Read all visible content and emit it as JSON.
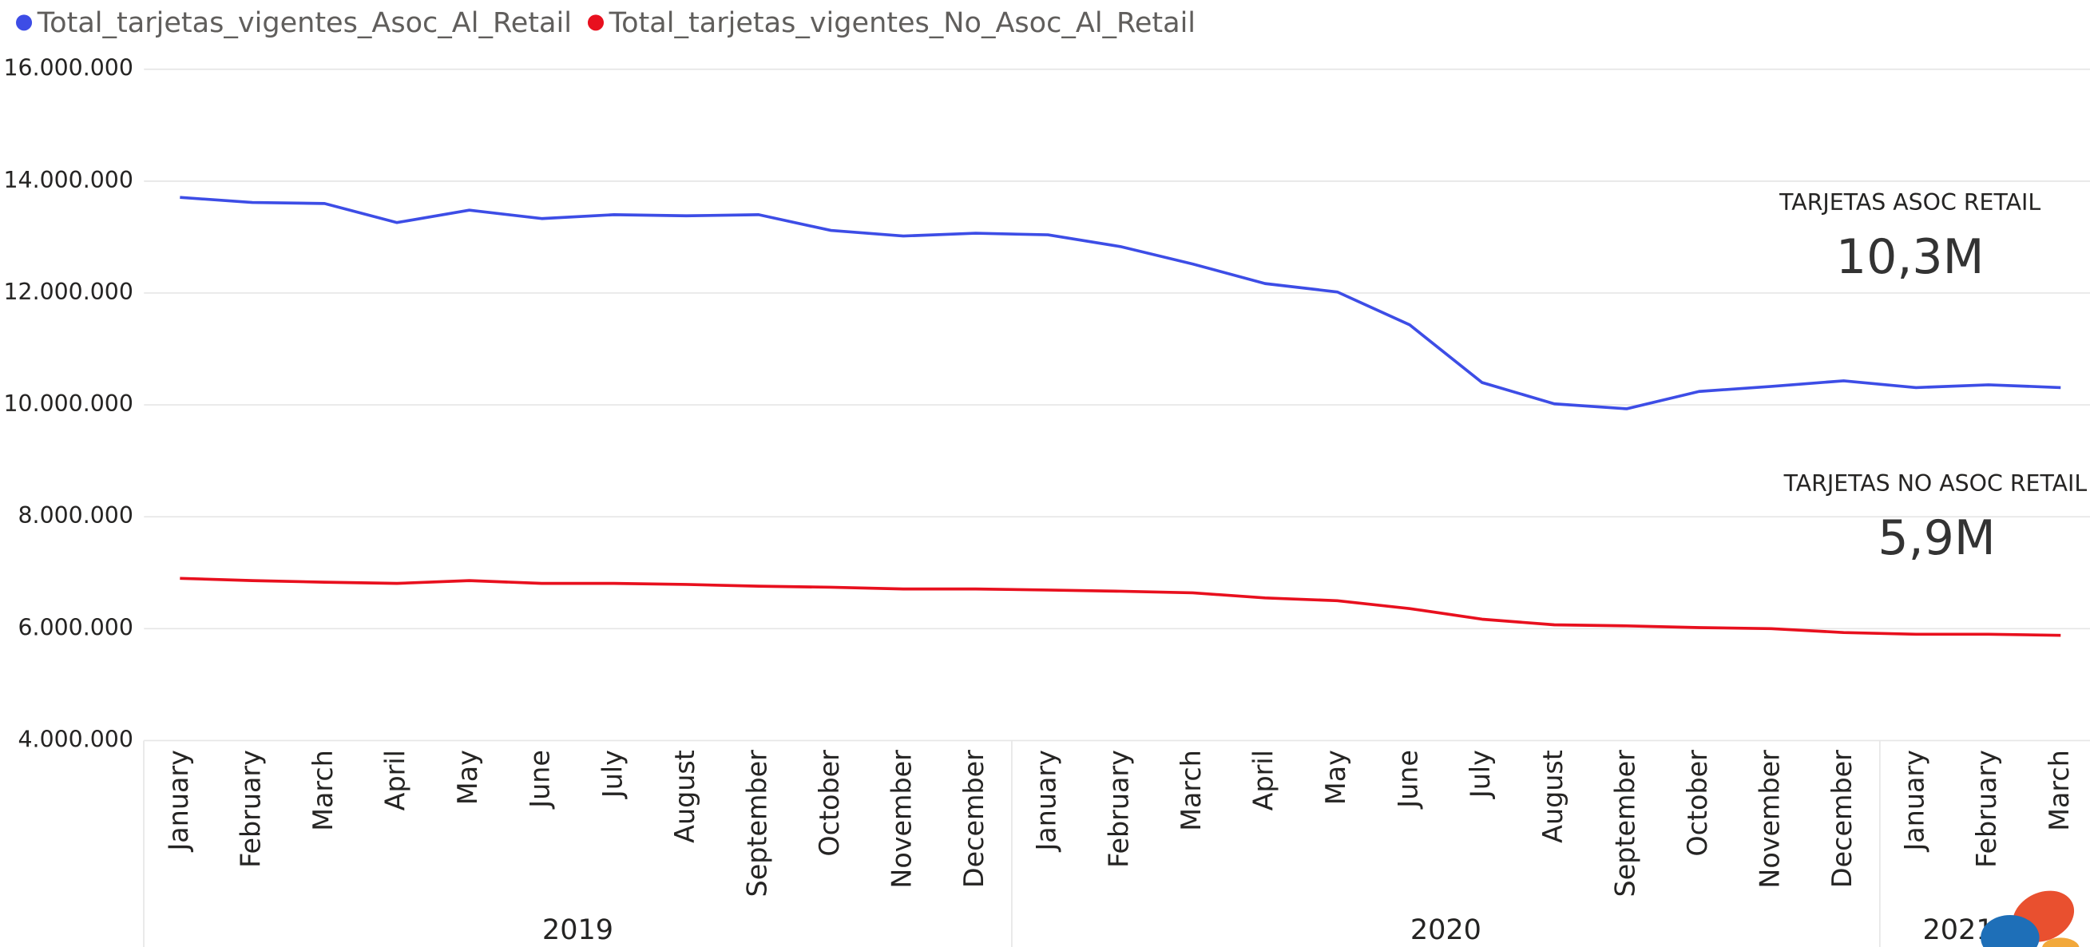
{
  "chart_data": {
    "type": "line",
    "groups": [
      {
        "label": "2019",
        "categories": [
          "January",
          "February",
          "March",
          "April",
          "May",
          "June",
          "July",
          "August",
          "September",
          "October",
          "November",
          "December"
        ]
      },
      {
        "label": "2020",
        "categories": [
          "January",
          "February",
          "March",
          "April",
          "May",
          "June",
          "July",
          "August",
          "September",
          "October",
          "November",
          "December"
        ]
      },
      {
        "label": "2021",
        "categories": [
          "January",
          "February",
          "March"
        ]
      }
    ],
    "series": [
      {
        "name": "Total_tarjetas_vigentes_Asoc_Al_Retail",
        "color": "#3d4de6",
        "values": [
          13710000,
          13620000,
          13600000,
          13260000,
          13480000,
          13330000,
          13400000,
          13380000,
          13400000,
          13120000,
          13020000,
          13070000,
          13040000,
          12830000,
          12520000,
          12170000,
          12020000,
          11430000,
          10400000,
          10020000,
          9930000,
          10240000,
          10330000,
          10430000,
          10310000,
          10360000,
          10310000
        ]
      },
      {
        "name": "Total_tarjetas_vigentes_No_Asoc_Al_Retail",
        "color": "#e8101e",
        "values": [
          6900000,
          6860000,
          6830000,
          6810000,
          6860000,
          6810000,
          6810000,
          6790000,
          6760000,
          6740000,
          6710000,
          6710000,
          6690000,
          6670000,
          6640000,
          6550000,
          6500000,
          6360000,
          6170000,
          6070000,
          6050000,
          6020000,
          6000000,
          5930000,
          5900000,
          5900000,
          5880000
        ]
      }
    ],
    "ylim": [
      4000000,
      16000000
    ],
    "yticks": [
      {
        "value": 4000000,
        "label": "4.000.000"
      },
      {
        "value": 6000000,
        "label": "6.000.000"
      },
      {
        "value": 8000000,
        "label": "8.000.000"
      },
      {
        "value": 10000000,
        "label": "10.000.000"
      },
      {
        "value": 12000000,
        "label": "12.000.000"
      },
      {
        "value": 14000000,
        "label": "14.000.000"
      },
      {
        "value": 16000000,
        "label": "16.000.000"
      }
    ],
    "grid": true,
    "legend": "top-left"
  },
  "cards": [
    {
      "title": "TARJETAS ASOC RETAIL",
      "value": "10,3M"
    },
    {
      "title": "TARJETAS NO ASOC RETAIL",
      "value": "5,9M"
    }
  ]
}
